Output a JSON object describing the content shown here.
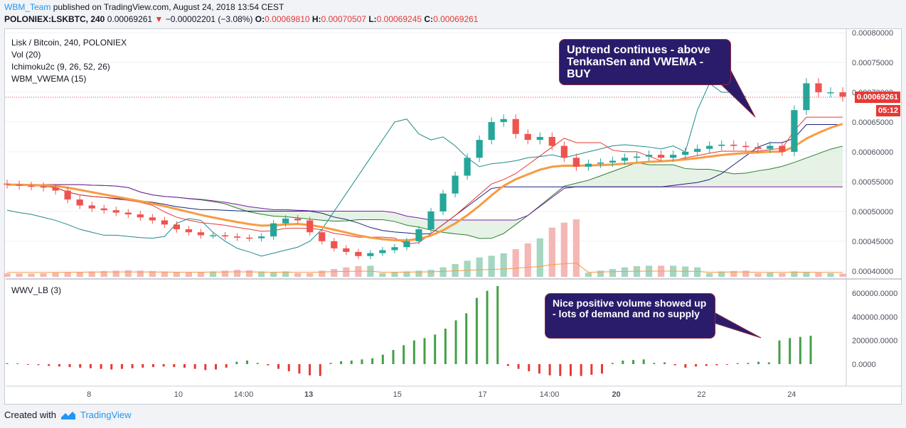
{
  "header": {
    "author": "WBM_Team",
    "published_text": "published on TradingView.com, August 24, 2018 13:54 CEST",
    "symbol": "POLONIEX:LSKBTC, 240",
    "last_price": "0.00069261",
    "change_arrow": "▼",
    "change_text": "−0.00002201 (−3.08%)",
    "open_label": "O:",
    "open_value": "0.00069810",
    "high_label": "H:",
    "high_value": "0.00070507",
    "low_label": "L:",
    "low_value": "0.00069245",
    "close_label": "C:",
    "close_value": "0.00069261"
  },
  "legend": {
    "title": "Lisk / Bitcoin, 240, POLONIEX",
    "vol": "Vol (20)",
    "ichimoku": "Ichimoku2c (9, 26, 52, 26)",
    "vwema": "WBM_VWEMA (15)",
    "wwv": "WWV_LB (3)"
  },
  "annotations": {
    "top_note": "Uptrend continues - above TenkanSen and VWEMA - BUY",
    "bottom_note": "Nice positive volume showed up - lots of demand and no supply"
  },
  "price_axis": {
    "ticks": [
      "0.00080000",
      "0.00075000",
      "0.00070000",
      "0.00065000",
      "0.00060000",
      "0.00055000",
      "0.00050000",
      "0.00045000",
      "0.00040000"
    ],
    "current_price": "0.00069261",
    "countdown": "05:12"
  },
  "volume_axis": {
    "ticks": [
      "600000.0000",
      "400000.0000",
      "200000.0000",
      "0.0000"
    ]
  },
  "time_axis": {
    "ticks": [
      "8",
      "10",
      "14:00",
      "13",
      "15",
      "17",
      "14:00",
      "20",
      "22",
      "24"
    ]
  },
  "footer": {
    "created_with": "Created with",
    "brand": "TradingView",
    "logo_icon": "tradingview-logo-icon"
  },
  "colors": {
    "up": "#26a69a",
    "down": "#ef5350",
    "vwema": "#f79c43",
    "tenkan": "#e53935",
    "kijun": "#1a237e",
    "accent": "#2196f3",
    "annotation_bg": "#2a1c6b"
  },
  "chart_data": [
    {
      "type": "line",
      "title": "Lisk / Bitcoin, 240, POLONIEX",
      "ylim": [
        0.000395,
        0.0008
      ],
      "x_ticks": [
        "8",
        "10",
        "14:00",
        "13",
        "15",
        "17",
        "14:00",
        "20",
        "22",
        "24"
      ],
      "series": [
        {
          "name": "close",
          "values": [
            0.000545,
            0.000543,
            0.000542,
            0.00054,
            0.000535,
            0.00052,
            0.00051,
            0.000505,
            0.000502,
            0.000498,
            0.000495,
            0.00049,
            0.000485,
            0.000478,
            0.00047,
            0.000465,
            0.00046,
            0.00046,
            0.000458,
            0.000456,
            0.000455,
            0.000458,
            0.00048,
            0.000488,
            0.000485,
            0.000465,
            0.00045,
            0.000438,
            0.000432,
            0.000425,
            0.00043,
            0.000435,
            0.00044,
            0.00045,
            0.00047,
            0.0005,
            0.00053,
            0.00056,
            0.00059,
            0.00062,
            0.00065,
            0.000655,
            0.00063,
            0.00062,
            0.000625,
            0.00061,
            0.00059,
            0.000575,
            0.00058,
            0.000582,
            0.000585,
            0.00059,
            0.000592,
            0.000595,
            0.00059,
            0.000595,
            0.0006,
            0.000605,
            0.00061,
            0.000612,
            0.00061,
            0.000608,
            0.000605,
            0.00061,
            0.0006,
            0.00067,
            0.000715,
            0.0007,
            0.0007,
            0.00069261
          ]
        }
      ]
    },
    {
      "type": "bar",
      "title": "WWV_LB (3)",
      "ylim": [
        -150000,
        700000
      ],
      "values": [
        8000,
        6000,
        -5000,
        -8000,
        -15000,
        -20000,
        -25000,
        -30000,
        -35000,
        -40000,
        -45000,
        -40000,
        -35000,
        -30000,
        -25000,
        -20000,
        -25000,
        -30000,
        -40000,
        -50000,
        -45000,
        -30000,
        20000,
        30000,
        10000,
        -10000,
        -40000,
        -60000,
        -80000,
        -95000,
        -100000,
        10000,
        25000,
        30000,
        40000,
        50000,
        80000,
        120000,
        160000,
        200000,
        220000,
        250000,
        300000,
        370000,
        430000,
        560000,
        620000,
        660000,
        -15000,
        -40000,
        -60000,
        -80000,
        -95000,
        -100000,
        -100000,
        -100000,
        -90000,
        -80000,
        10000,
        30000,
        35000,
        40000,
        10000,
        15000,
        -10000,
        -30000,
        -20000,
        -15000,
        -10000,
        -5000,
        8000,
        10000,
        20000,
        15000,
        200000,
        220000,
        230000,
        240000
      ]
    }
  ]
}
